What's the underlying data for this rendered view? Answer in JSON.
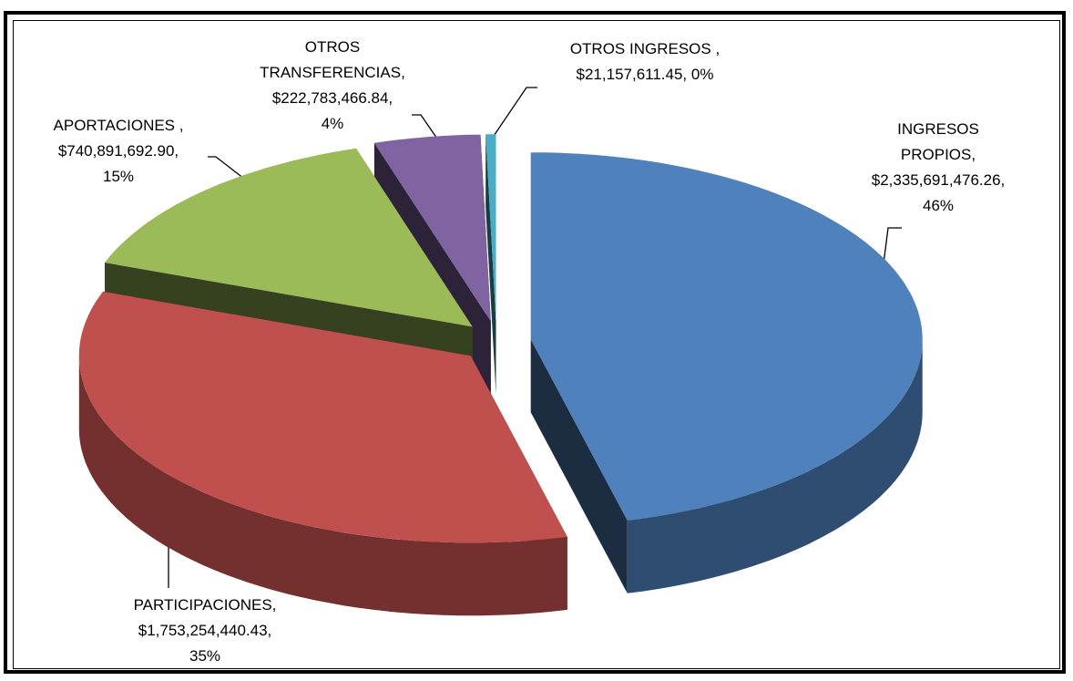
{
  "chart_data": {
    "type": "pie",
    "categories": [
      "INGRESOS PROPIOS,",
      "PARTICIPACIONES,",
      "APORTACIONES ,",
      "OTROS TRANSFERENCIAS,",
      "OTROS INGRESOS ,"
    ],
    "values": [
      2335691476.26,
      1753254440.43,
      740891692.9,
      222783466.84,
      21157611.45
    ],
    "value_labels": [
      "$2,335,691,476.26,",
      "$1,753,254,440.43,",
      "$740,891,692.90,",
      "$222,783,466.84,",
      "$21,157,611.45,"
    ],
    "percent_labels": [
      "46%",
      "35%",
      "15%",
      "4%",
      "0%"
    ],
    "colors": [
      "#4f81bd",
      "#c0504d",
      "#9bbb59",
      "#8064a2",
      "#4bacc6"
    ]
  }
}
